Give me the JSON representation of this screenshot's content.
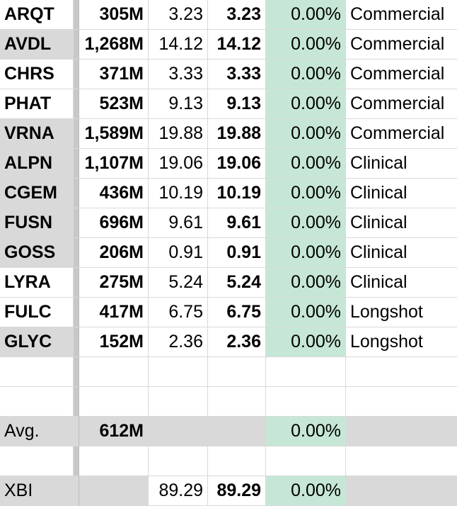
{
  "rows": [
    {
      "ticker": "ARQT",
      "mcap": "305M",
      "price1": "3.23",
      "price2": "3.23",
      "change": "0.00%",
      "category": "Commercial",
      "shaded": false
    },
    {
      "ticker": "AVDL",
      "mcap": "1,268M",
      "price1": "14.12",
      "price2": "14.12",
      "change": "0.00%",
      "category": "Commercial",
      "shaded": true
    },
    {
      "ticker": "CHRS",
      "mcap": "371M",
      "price1": "3.33",
      "price2": "3.33",
      "change": "0.00%",
      "category": "Commercial",
      "shaded": false
    },
    {
      "ticker": "PHAT",
      "mcap": "523M",
      "price1": "9.13",
      "price2": "9.13",
      "change": "0.00%",
      "category": "Commercial",
      "shaded": false
    },
    {
      "ticker": "VRNA",
      "mcap": "1,589M",
      "price1": "19.88",
      "price2": "19.88",
      "change": "0.00%",
      "category": "Commercial",
      "shaded": true
    },
    {
      "ticker": "ALPN",
      "mcap": "1,107M",
      "price1": "19.06",
      "price2": "19.06",
      "change": "0.00%",
      "category": "Clinical",
      "shaded": true
    },
    {
      "ticker": "CGEM",
      "mcap": "436M",
      "price1": "10.19",
      "price2": "10.19",
      "change": "0.00%",
      "category": "Clinical",
      "shaded": true
    },
    {
      "ticker": "FUSN",
      "mcap": "696M",
      "price1": "9.61",
      "price2": "9.61",
      "change": "0.00%",
      "category": "Clinical",
      "shaded": true
    },
    {
      "ticker": "GOSS",
      "mcap": "206M",
      "price1": "0.91",
      "price2": "0.91",
      "change": "0.00%",
      "category": "Clinical",
      "shaded": true
    },
    {
      "ticker": "LYRA",
      "mcap": "275M",
      "price1": "5.24",
      "price2": "5.24",
      "change": "0.00%",
      "category": "Clinical",
      "shaded": false
    },
    {
      "ticker": "FULC",
      "mcap": "417M",
      "price1": "6.75",
      "price2": "6.75",
      "change": "0.00%",
      "category": "Longshot",
      "shaded": false
    },
    {
      "ticker": "GLYC",
      "mcap": "152M",
      "price1": "2.36",
      "price2": "2.36",
      "change": "0.00%",
      "category": "Longshot",
      "shaded": true
    }
  ],
  "average": {
    "label": "Avg.",
    "mcap": "612M",
    "price1": "",
    "price2": "",
    "change": "0.00%",
    "category": ""
  },
  "index": {
    "label": "XBI",
    "mcap": "",
    "price1": "89.29",
    "price2": "89.29",
    "change": "0.00%",
    "category": ""
  },
  "colors": {
    "change_fill": "#c7e7d6",
    "shade": "#d9d9d9",
    "gridline": "#d9d9d9"
  }
}
